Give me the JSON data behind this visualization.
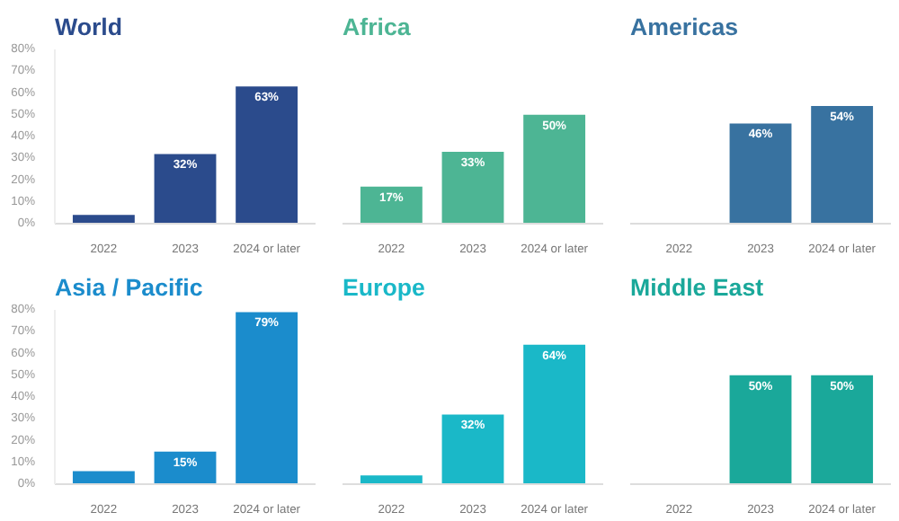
{
  "chart_data": [
    {
      "type": "bar",
      "title": "World",
      "categories": [
        "2022",
        "2023",
        "2024 or later"
      ],
      "values": [
        4,
        32,
        63
      ],
      "color": "#2b4b8c",
      "value_labels": [
        null,
        "32%",
        "63%"
      ],
      "ylim": [
        0,
        80
      ],
      "yticks": [
        {
          "value": 0,
          "label": "0%"
        },
        {
          "value": 10,
          "label": "10%"
        },
        {
          "value": 20,
          "label": "20%"
        },
        {
          "value": 30,
          "label": "30%"
        },
        {
          "value": 40,
          "label": "40%"
        },
        {
          "value": 50,
          "label": "50%"
        },
        {
          "value": 60,
          "label": "60%"
        },
        {
          "value": 70,
          "label": "70%"
        },
        {
          "value": 80,
          "label": "80%"
        }
      ]
    },
    {
      "type": "bar",
      "title": "Africa",
      "categories": [
        "2022",
        "2023",
        "2024 or later"
      ],
      "values": [
        17,
        33,
        50
      ],
      "color": "#4db594",
      "value_labels": [
        "17%",
        "33%",
        "50%"
      ],
      "ylim": [
        0,
        80
      ],
      "tick_labels": "x"
    },
    {
      "type": "bar",
      "title": "Americas",
      "categories": [
        "2022",
        "2023",
        "2024 or later"
      ],
      "values": [
        null,
        46,
        54
      ],
      "color": "#3872a0",
      "value_labels": [
        null,
        "46%",
        "54%"
      ],
      "ylim": [
        0,
        80
      ],
      "tick_labels": "x"
    },
    {
      "type": "bar",
      "title": "Asia / Pacific",
      "categories": [
        "2022",
        "2023",
        "2024 or later"
      ],
      "values": [
        6,
        15,
        79
      ],
      "color": "#1b8ccc",
      "value_labels": [
        null,
        "15%",
        "79%"
      ],
      "ylim": [
        0,
        80
      ],
      "yticks": [
        {
          "value": 0,
          "label": "0%"
        },
        {
          "value": 10,
          "label": "10%"
        },
        {
          "value": 20,
          "label": "20%"
        },
        {
          "value": 30,
          "label": "30%"
        },
        {
          "value": 40,
          "label": "40%"
        },
        {
          "value": 50,
          "label": "50%"
        },
        {
          "value": 60,
          "label": "60%"
        },
        {
          "value": 70,
          "label": "70%"
        },
        {
          "value": 80,
          "label": "80%"
        }
      ]
    },
    {
      "type": "bar",
      "title": "Europe",
      "categories": [
        "2022",
        "2023",
        "2024 or later"
      ],
      "values": [
        4,
        32,
        64
      ],
      "color": "#1ab8c8",
      "value_labels": [
        null,
        "32%",
        "64%"
      ],
      "ylim": [
        0,
        80
      ],
      "tick_labels": "x"
    },
    {
      "type": "bar",
      "title": "Middle East",
      "categories": [
        "2022",
        "2023",
        "2024 or later"
      ],
      "values": [
        null,
        50,
        50
      ],
      "color": "#1aa89a",
      "value_labels": [
        null,
        "50%",
        "50%"
      ],
      "ylim": [
        0,
        80
      ],
      "tick_labels": "x"
    }
  ]
}
